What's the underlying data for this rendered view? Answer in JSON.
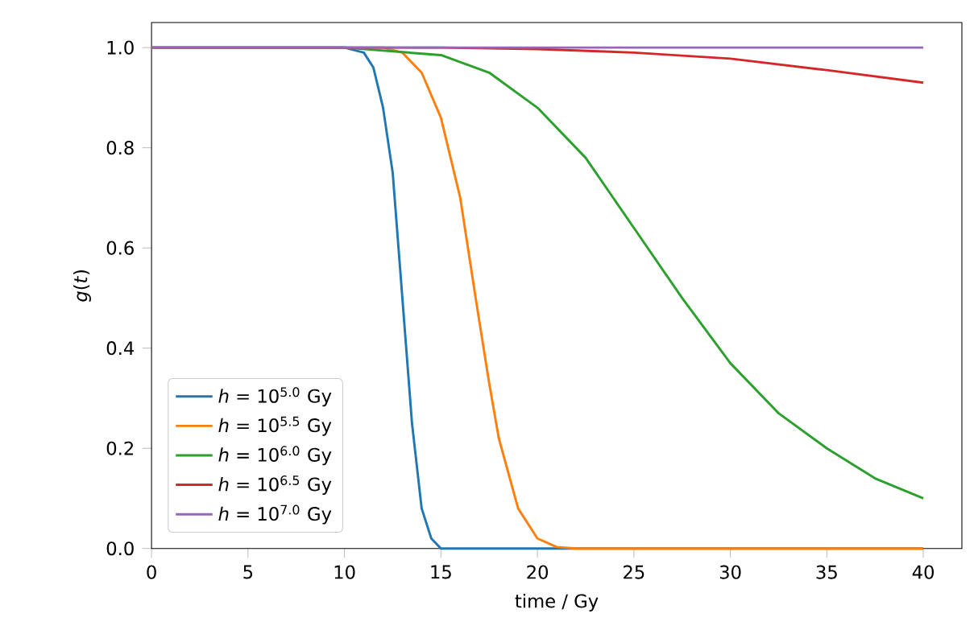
{
  "chart_data": {
    "type": "line",
    "xlabel": "time / Gy",
    "ylabel": "*g*(*t*)",
    "xlim": [
      0,
      42
    ],
    "ylim": [
      0,
      1.05
    ],
    "xticks": [
      0,
      5,
      10,
      15,
      20,
      25,
      30,
      35,
      40
    ],
    "yticks": [
      {
        "value": 0,
        "label": "0.0"
      },
      {
        "value": 0.2,
        "label": "0.2"
      },
      {
        "value": 0.4,
        "label": "0.4"
      },
      {
        "value": 0.6,
        "label": "0.6"
      },
      {
        "value": 0.8,
        "label": "0.8"
      },
      {
        "value": 1.0,
        "label": "1.0"
      }
    ],
    "legend": "bottom left",
    "grid": false,
    "marker": "none",
    "line_style": "solid",
    "series": [
      {
        "name": "*h* = 10$^{5.0}$ Gy",
        "color": "#1f77b4",
        "x": [
          0,
          10,
          11,
          11.5,
          12,
          12.5,
          13,
          13.5,
          14,
          14.5,
          15,
          20,
          40
        ],
        "values": [
          1,
          1,
          0.99,
          0.96,
          0.88,
          0.75,
          0.5,
          0.25,
          0.08,
          0.02,
          0,
          0,
          0
        ]
      },
      {
        "name": "*h* = 10$^{5.5}$ Gy",
        "color": "#ff7f0e",
        "x": [
          0,
          12,
          13,
          14,
          15,
          16,
          16.8,
          17.5,
          18,
          19,
          20,
          21,
          22,
          40
        ],
        "values": [
          1,
          1,
          0.99,
          0.95,
          0.86,
          0.7,
          0.5,
          0.33,
          0.22,
          0.08,
          0.02,
          0.003,
          0,
          0
        ]
      },
      {
        "name": "*h* = 10$^{6.0}$ Gy",
        "color": "#2ca02c",
        "x": [
          0,
          10,
          15,
          17.5,
          20,
          22.5,
          25,
          27.5,
          30,
          32.5,
          35,
          37.5,
          40
        ],
        "values": [
          1,
          1,
          0.985,
          0.95,
          0.88,
          0.78,
          0.64,
          0.5,
          0.37,
          0.27,
          0.2,
          0.14,
          0.1
        ]
      },
      {
        "name": "*h* = 10$^{6.5}$ Gy",
        "color": "#d62728",
        "x": [
          0,
          15,
          20,
          25,
          30,
          35,
          40
        ],
        "values": [
          1,
          1,
          0.997,
          0.99,
          0.978,
          0.955,
          0.93
        ]
      },
      {
        "name": "*h* = 10$^{7.0}$ Gy",
        "color": "#9467bd",
        "x": [
          0,
          10,
          20,
          30,
          40
        ],
        "values": [
          1,
          1,
          1,
          1,
          1
        ]
      }
    ]
  }
}
